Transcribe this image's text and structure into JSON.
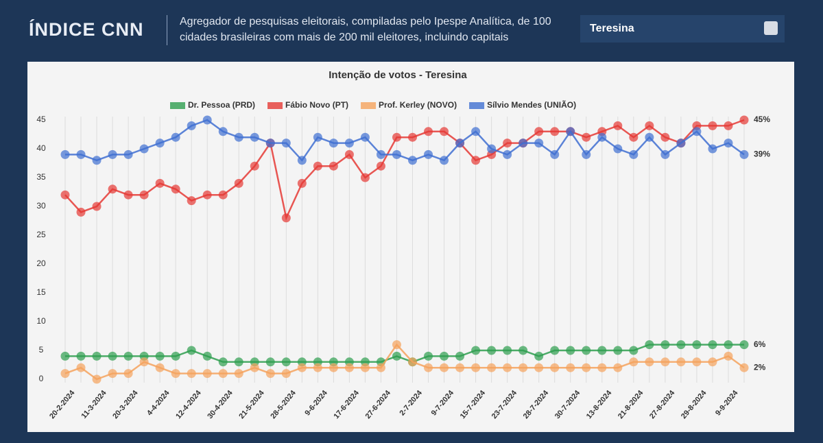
{
  "header": {
    "logo_left": "ÍNDICE",
    "logo_right": "CNN",
    "description": "Agregador de pesquisas eleitorais, compiladas pelo Ipespe Analítica, de 100 cidades brasileiras com mais de 200 mil eleitores, incluindo capitais",
    "city_select": "Teresina"
  },
  "chart_data": {
    "type": "line",
    "title": "Intenção de votos - Teresina",
    "categories": [
      "20-2-2024",
      null,
      "11-3-2024",
      null,
      "20-3-2024",
      null,
      "4-4-2024",
      null,
      "12-4-2024",
      null,
      "30-4-2024",
      null,
      "21-5-2024",
      null,
      "28-5-2024",
      null,
      "9-6-2024",
      null,
      "17-6-2024",
      null,
      "27-6-2024",
      null,
      "2-7-2024",
      null,
      "9-7-2024",
      null,
      "15-7-2024",
      null,
      "23-7-2024",
      null,
      "28-7-2024",
      null,
      "30-7-2024",
      null,
      "13-8-2024",
      null,
      "21-8-2024",
      null,
      "27-8-2024",
      null,
      "29-8-2024",
      null,
      "9-9-2024",
      null
    ],
    "series": [
      {
        "name": "Dr. Pessoa (PRD)",
        "color": "#2e9e4f",
        "end_label": "6%",
        "values": [
          4,
          4,
          4,
          4,
          4,
          4,
          4,
          4,
          5,
          4,
          3,
          3,
          3,
          3,
          3,
          3,
          3,
          3,
          3,
          3,
          3,
          4,
          3,
          4,
          4,
          4,
          5,
          5,
          5,
          5,
          4,
          5,
          5,
          5,
          5,
          5,
          5,
          6,
          6,
          6,
          6,
          6,
          6,
          6
        ]
      },
      {
        "name": "Fábio Novo (PT)",
        "color": "#e53935",
        "end_label": "45%",
        "values": [
          32,
          29,
          30,
          33,
          32,
          32,
          34,
          33,
          31,
          32,
          32,
          34,
          37,
          41,
          28,
          34,
          37,
          37,
          39,
          35,
          37,
          42,
          42,
          43,
          43,
          41,
          38,
          39,
          41,
          41,
          43,
          43,
          43,
          42,
          43,
          44,
          42,
          44,
          42,
          41,
          44,
          44,
          44,
          45
        ]
      },
      {
        "name": "Prof. Kerley (NOVO)",
        "color": "#f5a25d",
        "end_label": "2%",
        "values": [
          1,
          2,
          0,
          1,
          1,
          3,
          2,
          1,
          1,
          1,
          1,
          1,
          2,
          1,
          1,
          2,
          2,
          2,
          2,
          2,
          2,
          6,
          3,
          2,
          2,
          2,
          2,
          2,
          2,
          2,
          2,
          2,
          2,
          2,
          2,
          2,
          3,
          3,
          3,
          3,
          3,
          3,
          4,
          2
        ]
      },
      {
        "name": "Sílvio Mendes (UNIÃO)",
        "color": "#3f6fd1",
        "end_label": "39%",
        "values": [
          39,
          39,
          38,
          39,
          39,
          40,
          41,
          42,
          44,
          45,
          43,
          42,
          42,
          41,
          41,
          38,
          42,
          41,
          41,
          42,
          39,
          39,
          38,
          39,
          38,
          41,
          43,
          40,
          39,
          41,
          41,
          39,
          43,
          39,
          42,
          40,
          39,
          42,
          39,
          41,
          43,
          40,
          41,
          39
        ]
      }
    ],
    "ylim": [
      0,
      45
    ],
    "yticks": [
      0,
      5,
      10,
      15,
      20,
      25,
      30,
      35,
      40,
      45
    ],
    "grid": true
  }
}
